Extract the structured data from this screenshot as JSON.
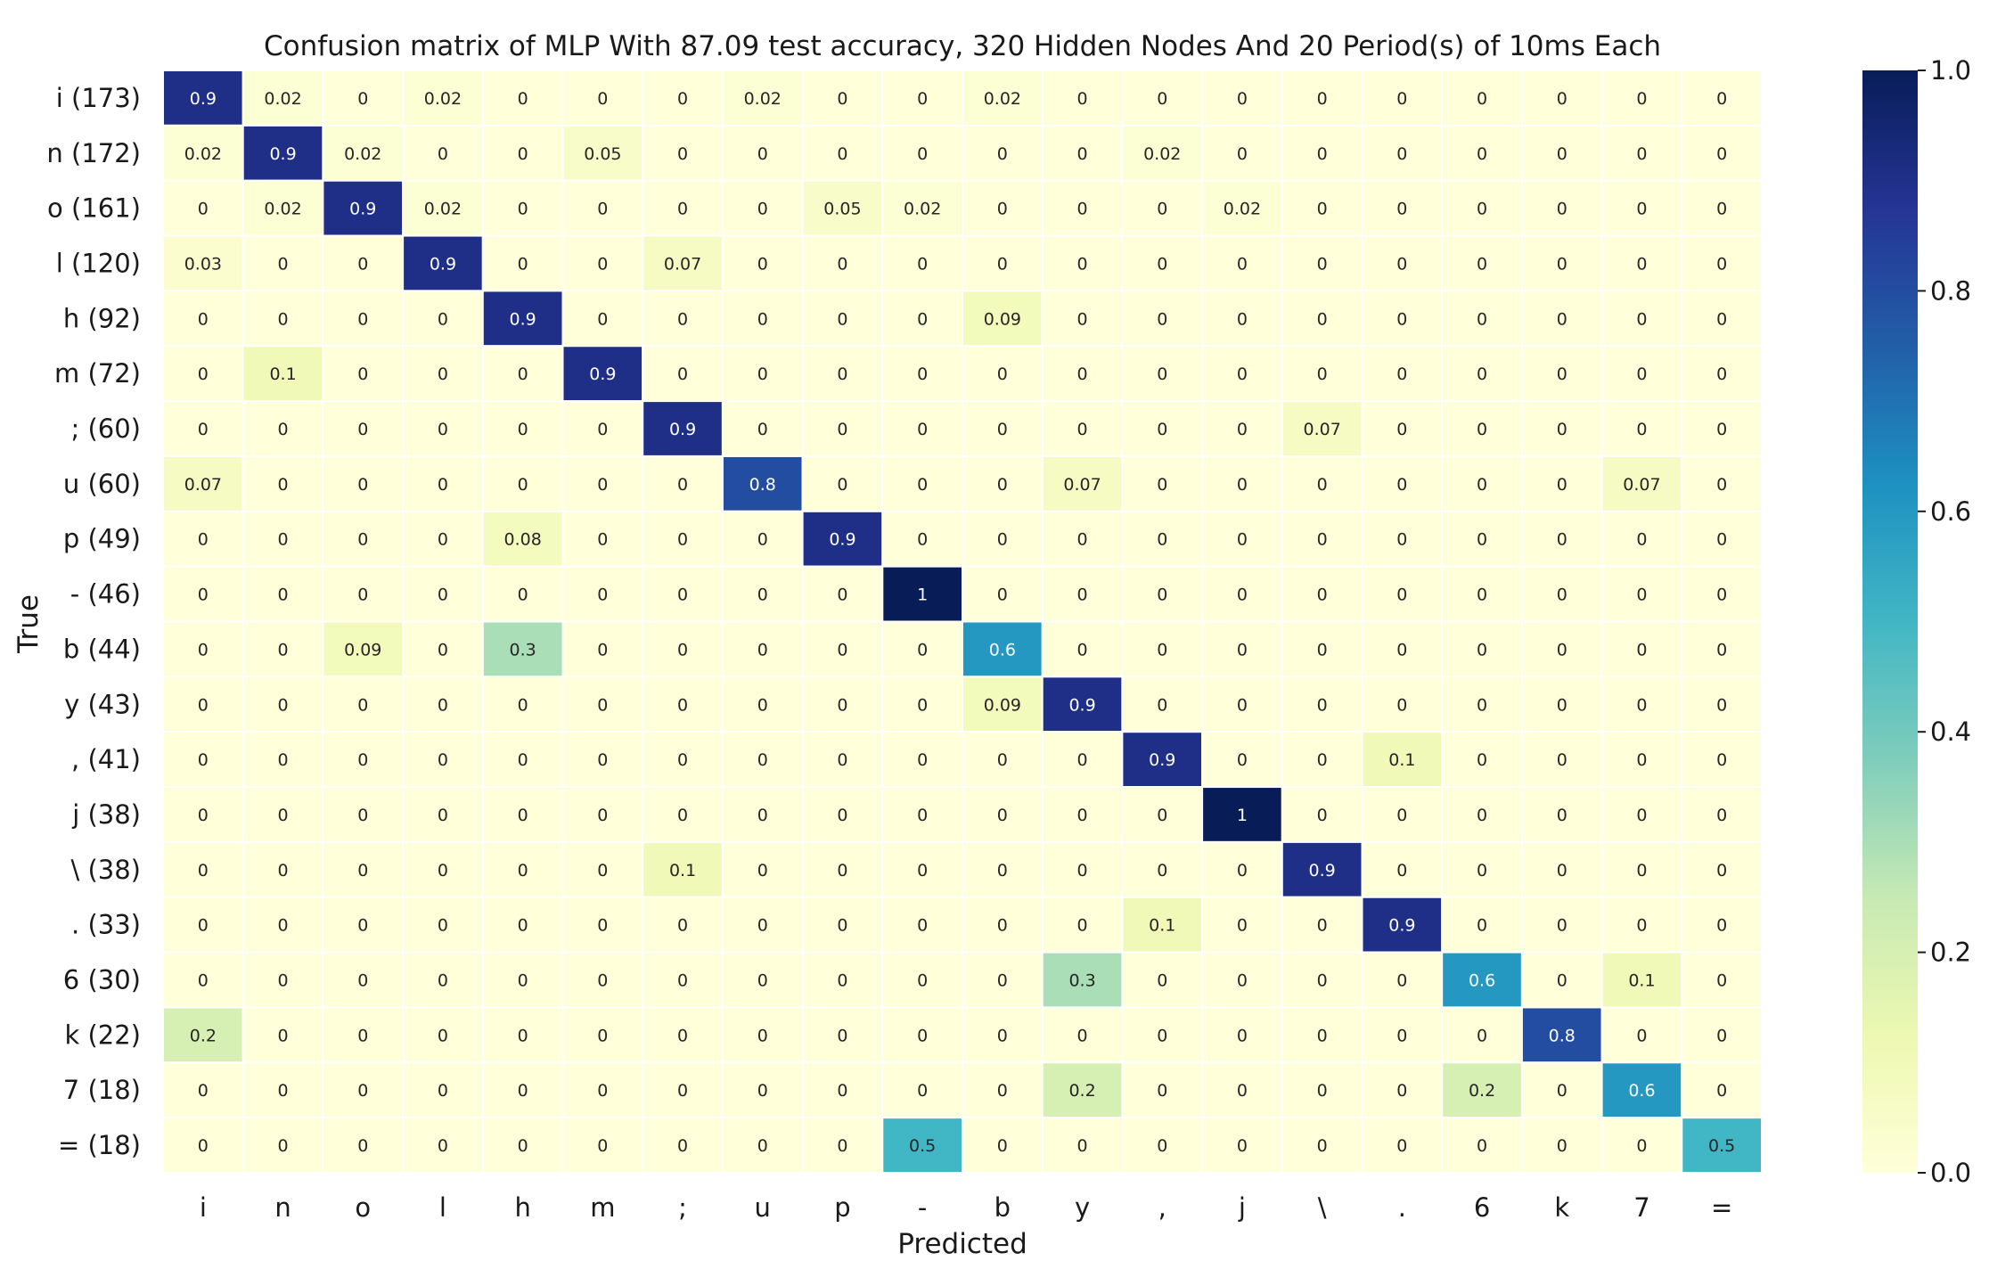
{
  "chart_data": {
    "type": "heatmap",
    "title": "Confusion matrix of MLP With 87.09 test accuracy, 320 Hidden Nodes And 20 Period(s) of 10ms Each",
    "xlabel": "Predicted",
    "ylabel": "True",
    "x_categories": [
      "i",
      "n",
      "o",
      "l",
      "h",
      "m",
      ";",
      "u",
      "p",
      "-",
      "b",
      "y",
      ",",
      "j",
      "\\",
      ".",
      "6",
      "k",
      "7",
      "="
    ],
    "y_categories": [
      "i (173)",
      "n (172)",
      "o (161)",
      "l (120)",
      "h (92)",
      "m (72)",
      "; (60)",
      "u (60)",
      "p (49)",
      "- (46)",
      "b (44)",
      "y (43)",
      ", (41)",
      "j (38)",
      "\\ (38)",
      ". (33)",
      "6 (30)",
      "k (22)",
      "7 (18)",
      "= (18)"
    ],
    "values": [
      [
        0.9,
        0.02,
        0,
        0.02,
        0,
        0,
        0,
        0.02,
        0,
        0,
        0.02,
        0,
        0,
        0,
        0,
        0,
        0,
        0,
        0,
        0
      ],
      [
        0.02,
        0.9,
        0.02,
        0,
        0,
        0.05,
        0,
        0,
        0,
        0,
        0,
        0,
        0.02,
        0,
        0,
        0,
        0,
        0,
        0,
        0
      ],
      [
        0,
        0.02,
        0.9,
        0.02,
        0,
        0,
        0,
        0,
        0.05,
        0.02,
        0,
        0,
        0,
        0.02,
        0,
        0,
        0,
        0,
        0,
        0
      ],
      [
        0.03,
        0,
        0,
        0.9,
        0,
        0,
        0.07,
        0,
        0,
        0,
        0,
        0,
        0,
        0,
        0,
        0,
        0,
        0,
        0,
        0
      ],
      [
        0,
        0,
        0,
        0,
        0.9,
        0,
        0,
        0,
        0,
        0,
        0.09,
        0,
        0,
        0,
        0,
        0,
        0,
        0,
        0,
        0
      ],
      [
        0,
        0.1,
        0,
        0,
        0,
        0.9,
        0,
        0,
        0,
        0,
        0,
        0,
        0,
        0,
        0,
        0,
        0,
        0,
        0,
        0
      ],
      [
        0,
        0,
        0,
        0,
        0,
        0,
        0.9,
        0,
        0,
        0,
        0,
        0,
        0,
        0,
        0.07,
        0,
        0,
        0,
        0,
        0
      ],
      [
        0.07,
        0,
        0,
        0,
        0,
        0,
        0,
        0.8,
        0,
        0,
        0,
        0.07,
        0,
        0,
        0,
        0,
        0,
        0,
        0.07,
        0
      ],
      [
        0,
        0,
        0,
        0,
        0.08,
        0,
        0,
        0,
        0.9,
        0,
        0,
        0,
        0,
        0,
        0,
        0,
        0,
        0,
        0,
        0
      ],
      [
        0,
        0,
        0,
        0,
        0,
        0,
        0,
        0,
        0,
        1,
        0,
        0,
        0,
        0,
        0,
        0,
        0,
        0,
        0,
        0
      ],
      [
        0,
        0,
        0.09,
        0,
        0.3,
        0,
        0,
        0,
        0,
        0,
        0.6,
        0,
        0,
        0,
        0,
        0,
        0,
        0,
        0,
        0
      ],
      [
        0,
        0,
        0,
        0,
        0,
        0,
        0,
        0,
        0,
        0,
        0.09,
        0.9,
        0,
        0,
        0,
        0,
        0,
        0,
        0,
        0
      ],
      [
        0,
        0,
        0,
        0,
        0,
        0,
        0,
        0,
        0,
        0,
        0,
        0,
        0.9,
        0,
        0,
        0.1,
        0,
        0,
        0,
        0
      ],
      [
        0,
        0,
        0,
        0,
        0,
        0,
        0,
        0,
        0,
        0,
        0,
        0,
        0,
        1,
        0,
        0,
        0,
        0,
        0,
        0
      ],
      [
        0,
        0,
        0,
        0,
        0,
        0,
        0.1,
        0,
        0,
        0,
        0,
        0,
        0,
        0,
        0.9,
        0,
        0,
        0,
        0,
        0
      ],
      [
        0,
        0,
        0,
        0,
        0,
        0,
        0,
        0,
        0,
        0,
        0,
        0,
        0.1,
        0,
        0,
        0.9,
        0,
        0,
        0,
        0
      ],
      [
        0,
        0,
        0,
        0,
        0,
        0,
        0,
        0,
        0,
        0,
        0,
        0.3,
        0,
        0,
        0,
        0,
        0.6,
        0,
        0.1,
        0
      ],
      [
        0.2,
        0,
        0,
        0,
        0,
        0,
        0,
        0,
        0,
        0,
        0,
        0,
        0,
        0,
        0,
        0,
        0,
        0.8,
        0,
        0
      ],
      [
        0,
        0,
        0,
        0,
        0,
        0,
        0,
        0,
        0,
        0,
        0,
        0.2,
        0,
        0,
        0,
        0,
        0.2,
        0,
        0.6,
        0
      ],
      [
        0,
        0,
        0,
        0,
        0,
        0,
        0,
        0,
        0,
        0.5,
        0,
        0,
        0,
        0,
        0,
        0,
        0,
        0,
        0,
        0.5
      ]
    ],
    "vmin": 0,
    "vmax": 1,
    "colormap": "YlGnBu",
    "colorbar_ticks": [
      "0.0",
      "0.2",
      "0.4",
      "0.6",
      "0.8",
      "1.0"
    ],
    "grid": true,
    "gridline_color": "#ffffff"
  }
}
